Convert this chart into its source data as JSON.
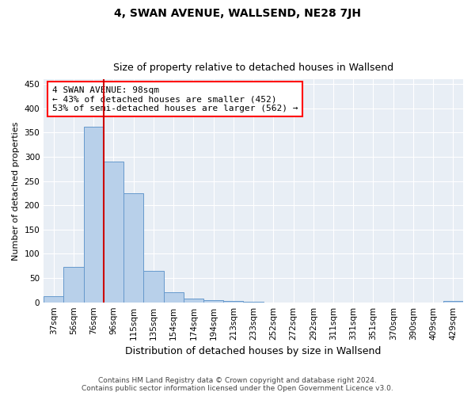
{
  "title": "4, SWAN AVENUE, WALLSEND, NE28 7JH",
  "subtitle": "Size of property relative to detached houses in Wallsend",
  "xlabel": "Distribution of detached houses by size in Wallsend",
  "ylabel": "Number of detached properties",
  "bin_labels": [
    "37sqm",
    "56sqm",
    "76sqm",
    "96sqm",
    "115sqm",
    "135sqm",
    "154sqm",
    "174sqm",
    "194sqm",
    "213sqm",
    "233sqm",
    "252sqm",
    "272sqm",
    "292sqm",
    "311sqm",
    "331sqm",
    "351sqm",
    "370sqm",
    "390sqm",
    "409sqm",
    "429sqm"
  ],
  "bin_values": [
    12,
    73,
    362,
    290,
    225,
    65,
    20,
    7,
    5,
    3,
    1,
    0,
    0,
    0,
    0,
    0,
    0,
    0,
    0,
    0,
    3
  ],
  "bar_color": "#b8d0ea",
  "bar_edge_color": "#6699cc",
  "annotation_text": "4 SWAN AVENUE: 98sqm\n← 43% of detached houses are smaller (452)\n53% of semi-detached houses are larger (562) →",
  "red_line_color": "#cc0000",
  "ylim": [
    0,
    460
  ],
  "yticks": [
    0,
    50,
    100,
    150,
    200,
    250,
    300,
    350,
    400,
    450
  ],
  "footer_line1": "Contains HM Land Registry data © Crown copyright and database right 2024.",
  "footer_line2": "Contains public sector information licensed under the Open Government Licence v3.0.",
  "title_fontsize": 10,
  "subtitle_fontsize": 9,
  "ylabel_fontsize": 8,
  "xlabel_fontsize": 9,
  "tick_fontsize": 7.5,
  "footer_fontsize": 6.5
}
